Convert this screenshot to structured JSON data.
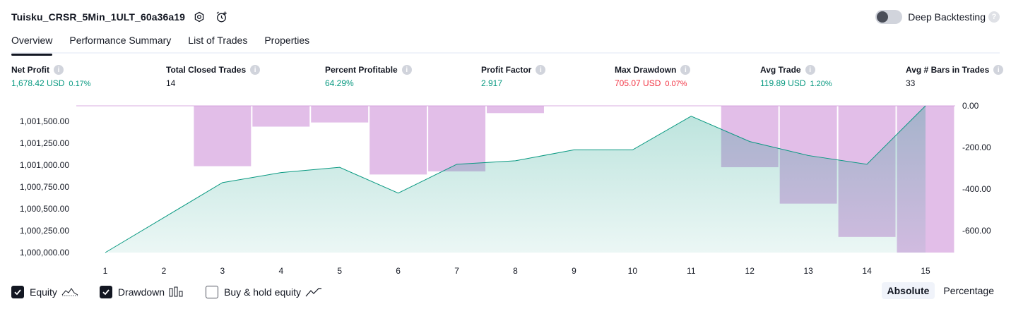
{
  "header": {
    "strategy_name": "Tuisku_CRSR_5Min_1ULT_60a36a19",
    "settings_icon": "gear-icon",
    "alert_icon": "alarm-clock-plus-icon",
    "deep_backtesting_label": "Deep Backtesting",
    "deep_backtesting_enabled": false,
    "help_glyph": "?"
  },
  "tabs": [
    {
      "label": "Overview",
      "active": true
    },
    {
      "label": "Performance Summary",
      "active": false
    },
    {
      "label": "List of Trades",
      "active": false
    },
    {
      "label": "Properties",
      "active": false
    }
  ],
  "metrics": [
    {
      "label": "Net Profit",
      "value": "1,678.42 USD",
      "pct": "0.17%",
      "color": "#089981"
    },
    {
      "label": "Total Closed Trades",
      "value": "14",
      "pct": "",
      "color": "#131722"
    },
    {
      "label": "Percent Profitable",
      "value": "64.29%",
      "pct": "",
      "color": "#089981"
    },
    {
      "label": "Profit Factor",
      "value": "2.917",
      "pct": "",
      "color": "#089981"
    },
    {
      "label": "Max Drawdown",
      "value": "705.07 USD",
      "pct": "0.07%",
      "color": "#f23645"
    },
    {
      "label": "Avg Trade",
      "value": "119.89 USD",
      "pct": "1.20%",
      "color": "#089981"
    },
    {
      "label": "Avg # Bars in Trades",
      "value": "33",
      "pct": "",
      "color": "#131722"
    }
  ],
  "legend": {
    "equity_label": "Equity",
    "equity_checked": true,
    "drawdown_label": "Drawdown",
    "drawdown_checked": true,
    "buyhold_label": "Buy & hold equity",
    "buyhold_checked": false
  },
  "mode": {
    "absolute_label": "Absolute",
    "percentage_label": "Percentage",
    "selected": "Absolute"
  },
  "chart_data": {
    "type": "line",
    "x": [
      1,
      2,
      3,
      4,
      5,
      6,
      7,
      8,
      9,
      10,
      11,
      12,
      13,
      14,
      15
    ],
    "series": [
      {
        "name": "Equity",
        "axis": "left",
        "color": "#089981",
        "values": [
          1000000,
          1000400,
          1000800,
          1000915,
          1000975,
          1000680,
          1001010,
          1001050,
          1001175,
          1001175,
          1001560,
          1001270,
          1001110,
          1001010,
          1001678.42
        ]
      },
      {
        "name": "Drawdown",
        "type": "bar",
        "axis": "right",
        "color": "#ce93d8",
        "values": [
          0,
          0,
          -290,
          -100,
          -80,
          -330,
          -315,
          -35,
          0,
          0,
          0,
          -295,
          -470,
          -630,
          -705.07
        ]
      }
    ],
    "left_axis": {
      "ticks": [
        "1,000,000.00",
        "1,000,250.00",
        "1,000,500.00",
        "1,000,750.00",
        "1,001,000.00",
        "1,001,250.00",
        "1,001,500.00"
      ],
      "range": [
        1000000,
        1001678.42
      ]
    },
    "right_axis": {
      "ticks": [
        "0.00",
        "-200.00",
        "-400.00",
        "-600.00"
      ],
      "range": [
        0,
        -705.07
      ]
    },
    "grid": false
  }
}
